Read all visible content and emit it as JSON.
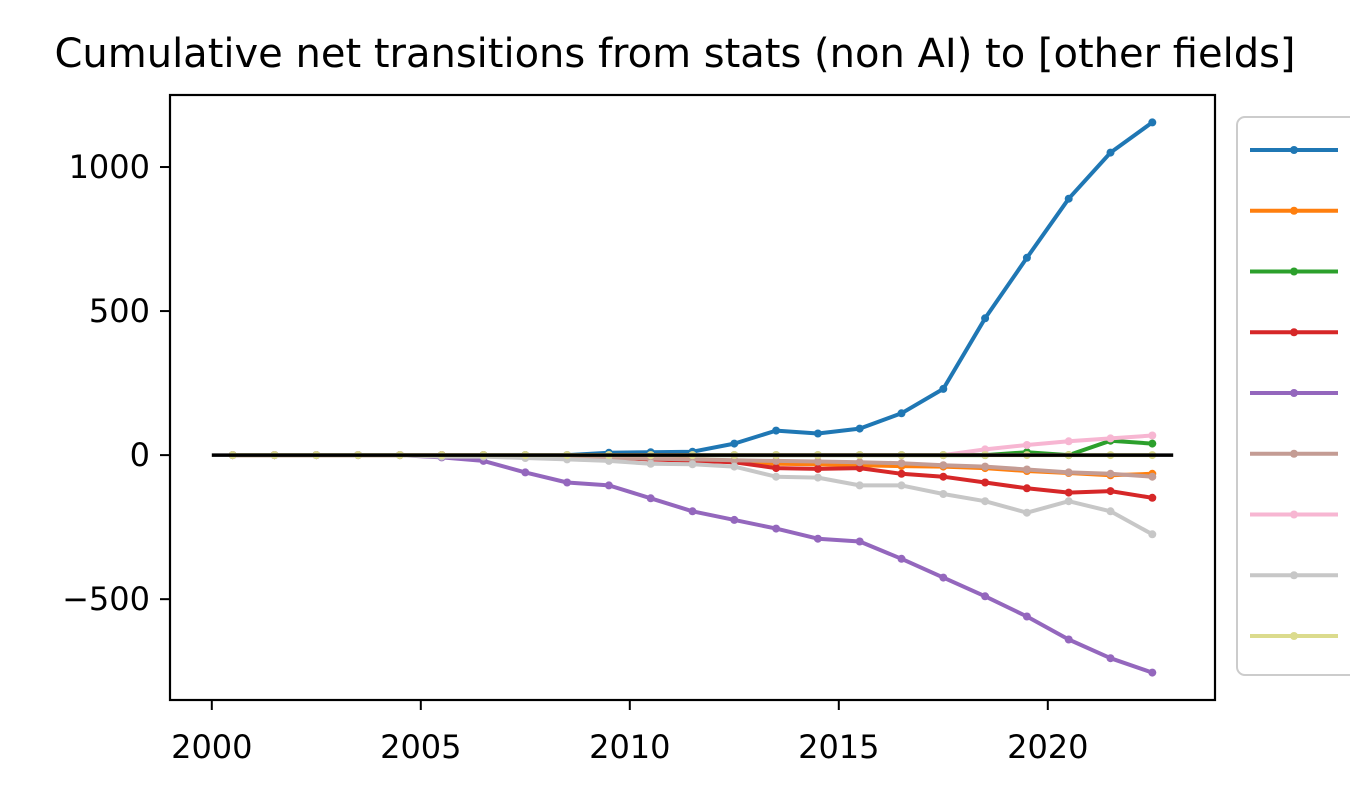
{
  "chart_data": {
    "type": "line",
    "title": "Cumulative net transitions from stats (non AI) to [other fields]",
    "xlabel": "",
    "ylabel": "",
    "xlim": [
      1999,
      2024
    ],
    "ylim": [
      -850,
      1250
    ],
    "xticks": [
      2000,
      2005,
      2010,
      2015,
      2020
    ],
    "yticks": [
      -500,
      0,
      500,
      1000
    ],
    "ytick_labels": [
      "−500",
      "0",
      "500",
      "1000"
    ],
    "grid": false,
    "legend_position": "right-outside",
    "zero_line": {
      "x": [
        2000,
        2023
      ],
      "y": 0,
      "color": "#000000"
    },
    "x": [
      2000.5,
      2001.5,
      2002.5,
      2003.5,
      2004.5,
      2005.5,
      2006.5,
      2007.5,
      2008.5,
      2009.5,
      2010.5,
      2011.5,
      2012.5,
      2013.5,
      2014.5,
      2015.5,
      2016.5,
      2017.5,
      2018.5,
      2019.5,
      2020.5,
      2021.5,
      2022.5
    ],
    "series": [
      {
        "color": "#1f77b4",
        "values": [
          0,
          0,
          0,
          0,
          0,
          0,
          0,
          0,
          0,
          8,
          10,
          12,
          40,
          85,
          75,
          92,
          145,
          230,
          475,
          685,
          890,
          1050,
          1155
        ]
      },
      {
        "color": "#ff7f0e",
        "values": [
          0,
          0,
          0,
          0,
          0,
          0,
          0,
          -3,
          -5,
          -7,
          -10,
          -15,
          -20,
          -30,
          -32,
          -35,
          -38,
          -40,
          -45,
          -55,
          -62,
          -70,
          -65
        ]
      },
      {
        "color": "#2ca02c",
        "values": [
          0,
          0,
          0,
          0,
          0,
          0,
          0,
          0,
          0,
          0,
          0,
          0,
          0,
          0,
          0,
          0,
          0,
          0,
          0,
          10,
          0,
          50,
          40
        ]
      },
      {
        "color": "#d62728",
        "values": [
          0,
          0,
          0,
          0,
          0,
          0,
          -2,
          -5,
          -8,
          -10,
          -15,
          -20,
          -25,
          -45,
          -48,
          -45,
          -65,
          -75,
          -95,
          -115,
          -130,
          -125,
          -148
        ]
      },
      {
        "color": "#9467bd",
        "values": [
          0,
          0,
          0,
          0,
          0,
          -8,
          -20,
          -60,
          -95,
          -105,
          -150,
          -195,
          -225,
          -255,
          -290,
          -300,
          -360,
          -425,
          -490,
          -560,
          -640,
          -705,
          -755
        ]
      },
      {
        "color": "#c49c94",
        "values": [
          0,
          0,
          0,
          0,
          0,
          0,
          0,
          -5,
          -8,
          -10,
          -12,
          -15,
          -18,
          -20,
          -22,
          -25,
          -28,
          -35,
          -40,
          -50,
          -60,
          -65,
          -75
        ]
      },
      {
        "color": "#f7b6d2",
        "values": [
          0,
          0,
          0,
          0,
          0,
          0,
          0,
          0,
          0,
          0,
          0,
          0,
          0,
          0,
          0,
          0,
          0,
          0,
          20,
          35,
          48,
          58,
          68
        ]
      },
      {
        "color": "#c7c7c7",
        "values": [
          0,
          0,
          0,
          0,
          0,
          -5,
          -5,
          -10,
          -15,
          -20,
          -30,
          -32,
          -40,
          -75,
          -78,
          -105,
          -105,
          -135,
          -160,
          -200,
          -160,
          -195,
          -275
        ]
      },
      {
        "color": "#dbdb8d",
        "values": [
          0,
          0,
          0,
          0,
          0,
          0,
          0,
          0,
          0,
          0,
          0,
          0,
          0,
          0,
          0,
          0,
          0,
          0,
          0,
          0,
          0,
          0,
          0
        ]
      }
    ]
  }
}
